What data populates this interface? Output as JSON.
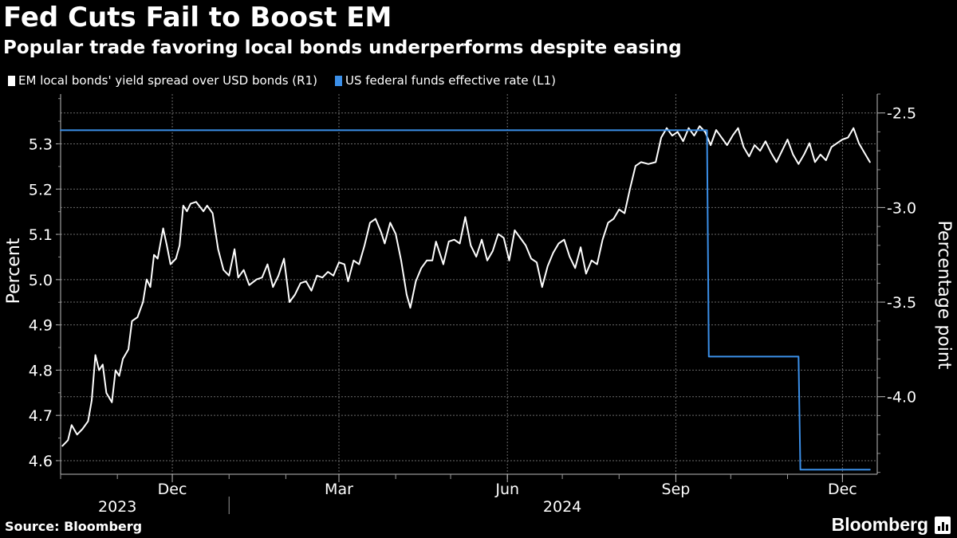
{
  "header": {
    "title": "Fed Cuts Fail to Boost EM",
    "subtitle": "Popular trade favoring local bonds underperforms despite easing"
  },
  "footer": {
    "source": "Source: Bloomberg",
    "brand": "Bloomberg",
    "brand_icon": "bloomberg-chart-icon"
  },
  "chart_data": {
    "type": "line",
    "grid": true,
    "legend_position": "top-left",
    "left_axis": {
      "label": "Percent",
      "range": [
        4.57,
        5.41
      ],
      "ticks": [
        4.6,
        4.7,
        4.8,
        4.9,
        5.0,
        5.1,
        5.2,
        5.3
      ],
      "tick_labels": [
        "4.6",
        "4.7",
        "4.8",
        "4.9",
        "5.0",
        "5.1",
        "5.2",
        "5.3"
      ]
    },
    "right_axis": {
      "label": "Percentage point",
      "range": [
        -4.41,
        -2.4
      ],
      "ticks": [
        -2.5,
        -3.0,
        -3.5,
        -4.0
      ],
      "tick_labels": [
        "-2.5",
        "-3.0",
        "-3.5",
        "-4.0"
      ]
    },
    "x_axis": {
      "range": [
        "2023-10-01",
        "2024-12-20"
      ],
      "month_labels": [
        {
          "date": "2023-12-01",
          "label": "Dec"
        },
        {
          "date": "2024-03-01",
          "label": "Mar"
        },
        {
          "date": "2024-06-01",
          "label": "Jun"
        },
        {
          "date": "2024-09-01",
          "label": "Sep"
        },
        {
          "date": "2024-12-01",
          "label": "Dec"
        }
      ],
      "year_labels": [
        {
          "date": "2023-11-01",
          "label": "2023"
        },
        {
          "date": "2024-07-01",
          "label": "2024"
        }
      ],
      "year_divider": "2024-01-01"
    },
    "series": [
      {
        "name": "EM local bonds' yield spread over USD bonds (R1)",
        "axis": "right",
        "color": "#ffffff",
        "points": [
          [
            "2023-10-02",
            -4.26
          ],
          [
            "2023-10-05",
            -4.23
          ],
          [
            "2023-10-07",
            -4.15
          ],
          [
            "2023-10-10",
            -4.2
          ],
          [
            "2023-10-13",
            -4.17
          ],
          [
            "2023-10-16",
            -4.13
          ],
          [
            "2023-10-18",
            -4.02
          ],
          [
            "2023-10-20",
            -3.78
          ],
          [
            "2023-10-22",
            -3.86
          ],
          [
            "2023-10-24",
            -3.83
          ],
          [
            "2023-10-26",
            -3.98
          ],
          [
            "2023-10-29",
            -4.03
          ],
          [
            "2023-10-31",
            -3.86
          ],
          [
            "2023-11-02",
            -3.89
          ],
          [
            "2023-11-04",
            -3.8
          ],
          [
            "2023-11-07",
            -3.75
          ],
          [
            "2023-11-09",
            -3.6
          ],
          [
            "2023-11-12",
            -3.58
          ],
          [
            "2023-11-15",
            -3.5
          ],
          [
            "2023-11-17",
            -3.38
          ],
          [
            "2023-11-19",
            -3.42
          ],
          [
            "2023-11-21",
            -3.25
          ],
          [
            "2023-11-23",
            -3.27
          ],
          [
            "2023-11-26",
            -3.11
          ],
          [
            "2023-11-28",
            -3.2
          ],
          [
            "2023-11-30",
            -3.3
          ],
          [
            "2023-12-03",
            -3.27
          ],
          [
            "2023-12-05",
            -3.2
          ],
          [
            "2023-12-07",
            -2.99
          ],
          [
            "2023-12-09",
            -3.02
          ],
          [
            "2023-12-11",
            -2.98
          ],
          [
            "2023-12-14",
            -2.97
          ],
          [
            "2023-12-18",
            -3.02
          ],
          [
            "2023-12-20",
            -2.99
          ],
          [
            "2023-12-23",
            -3.03
          ],
          [
            "2023-12-26",
            -3.22
          ],
          [
            "2023-12-29",
            -3.33
          ],
          [
            "2024-01-01",
            -3.36
          ],
          [
            "2024-01-04",
            -3.22
          ],
          [
            "2024-01-06",
            -3.37
          ],
          [
            "2024-01-09",
            -3.33
          ],
          [
            "2024-01-12",
            -3.41
          ],
          [
            "2024-01-16",
            -3.38
          ],
          [
            "2024-01-19",
            -3.37
          ],
          [
            "2024-01-22",
            -3.3
          ],
          [
            "2024-01-25",
            -3.42
          ],
          [
            "2024-01-28",
            -3.36
          ],
          [
            "2024-01-31",
            -3.27
          ],
          [
            "2024-02-03",
            -3.5
          ],
          [
            "2024-02-06",
            -3.46
          ],
          [
            "2024-02-09",
            -3.4
          ],
          [
            "2024-02-12",
            -3.39
          ],
          [
            "2024-02-15",
            -3.44
          ],
          [
            "2024-02-18",
            -3.36
          ],
          [
            "2024-02-21",
            -3.37
          ],
          [
            "2024-02-24",
            -3.34
          ],
          [
            "2024-02-27",
            -3.36
          ],
          [
            "2024-03-01",
            -3.29
          ],
          [
            "2024-03-04",
            -3.3
          ],
          [
            "2024-03-06",
            -3.39
          ],
          [
            "2024-03-09",
            -3.28
          ],
          [
            "2024-03-12",
            -3.3
          ],
          [
            "2024-03-15",
            -3.2
          ],
          [
            "2024-03-18",
            -3.08
          ],
          [
            "2024-03-21",
            -3.06
          ],
          [
            "2024-03-24",
            -3.13
          ],
          [
            "2024-03-26",
            -3.19
          ],
          [
            "2024-03-29",
            -3.08
          ],
          [
            "2024-04-01",
            -3.14
          ],
          [
            "2024-04-04",
            -3.28
          ],
          [
            "2024-04-07",
            -3.46
          ],
          [
            "2024-04-09",
            -3.53
          ],
          [
            "2024-04-12",
            -3.39
          ],
          [
            "2024-04-15",
            -3.32
          ],
          [
            "2024-04-18",
            -3.28
          ],
          [
            "2024-04-21",
            -3.28
          ],
          [
            "2024-04-23",
            -3.18
          ],
          [
            "2024-04-27",
            -3.3
          ],
          [
            "2024-04-30",
            -3.18
          ],
          [
            "2024-05-03",
            -3.17
          ],
          [
            "2024-05-06",
            -3.19
          ],
          [
            "2024-05-09",
            -3.05
          ],
          [
            "2024-05-12",
            -3.2
          ],
          [
            "2024-05-15",
            -3.26
          ],
          [
            "2024-05-18",
            -3.17
          ],
          [
            "2024-05-21",
            -3.28
          ],
          [
            "2024-05-24",
            -3.23
          ],
          [
            "2024-05-27",
            -3.14
          ],
          [
            "2024-05-30",
            -3.16
          ],
          [
            "2024-06-02",
            -3.28
          ],
          [
            "2024-06-05",
            -3.12
          ],
          [
            "2024-06-08",
            -3.16
          ],
          [
            "2024-06-11",
            -3.2
          ],
          [
            "2024-06-14",
            -3.27
          ],
          [
            "2024-06-17",
            -3.29
          ],
          [
            "2024-06-20",
            -3.42
          ],
          [
            "2024-06-23",
            -3.31
          ],
          [
            "2024-06-26",
            -3.24
          ],
          [
            "2024-06-29",
            -3.19
          ],
          [
            "2024-07-02",
            -3.17
          ],
          [
            "2024-07-05",
            -3.26
          ],
          [
            "2024-07-08",
            -3.32
          ],
          [
            "2024-07-11",
            -3.21
          ],
          [
            "2024-07-14",
            -3.35
          ],
          [
            "2024-07-17",
            -3.28
          ],
          [
            "2024-07-20",
            -3.3
          ],
          [
            "2024-07-23",
            -3.17
          ],
          [
            "2024-07-26",
            -3.08
          ],
          [
            "2024-07-29",
            -3.06
          ],
          [
            "2024-08-01",
            -3.01
          ],
          [
            "2024-08-04",
            -3.03
          ],
          [
            "2024-08-07",
            -2.9
          ],
          [
            "2024-08-10",
            -2.78
          ],
          [
            "2024-08-13",
            -2.76
          ],
          [
            "2024-08-17",
            -2.77
          ],
          [
            "2024-08-21",
            -2.76
          ],
          [
            "2024-08-24",
            -2.63
          ],
          [
            "2024-08-27",
            -2.58
          ],
          [
            "2024-08-30",
            -2.62
          ],
          [
            "2024-09-02",
            -2.6
          ],
          [
            "2024-09-05",
            -2.65
          ],
          [
            "2024-09-08",
            -2.58
          ],
          [
            "2024-09-11",
            -2.62
          ],
          [
            "2024-09-14",
            -2.57
          ],
          [
            "2024-09-17",
            -2.6
          ],
          [
            "2024-09-20",
            -2.67
          ],
          [
            "2024-09-23",
            -2.59
          ],
          [
            "2024-09-26",
            -2.63
          ],
          [
            "2024-09-29",
            -2.67
          ],
          [
            "2024-10-02",
            -2.62
          ],
          [
            "2024-10-05",
            -2.58
          ],
          [
            "2024-10-08",
            -2.68
          ],
          [
            "2024-10-11",
            -2.73
          ],
          [
            "2024-10-14",
            -2.67
          ],
          [
            "2024-10-17",
            -2.7
          ],
          [
            "2024-10-20",
            -2.65
          ],
          [
            "2024-10-23",
            -2.71
          ],
          [
            "2024-10-26",
            -2.76
          ],
          [
            "2024-10-29",
            -2.7
          ],
          [
            "2024-11-01",
            -2.64
          ],
          [
            "2024-11-04",
            -2.72
          ],
          [
            "2024-11-07",
            -2.77
          ],
          [
            "2024-11-10",
            -2.72
          ],
          [
            "2024-11-13",
            -2.66
          ],
          [
            "2024-11-16",
            -2.76
          ],
          [
            "2024-11-19",
            -2.72
          ],
          [
            "2024-11-22",
            -2.75
          ],
          [
            "2024-11-25",
            -2.68
          ],
          [
            "2024-11-28",
            -2.66
          ],
          [
            "2024-12-01",
            -2.64
          ],
          [
            "2024-12-04",
            -2.63
          ],
          [
            "2024-12-07",
            -2.58
          ],
          [
            "2024-12-10",
            -2.66
          ],
          [
            "2024-12-13",
            -2.71
          ],
          [
            "2024-12-16",
            -2.76
          ]
        ]
      },
      {
        "name": "US federal funds effective rate (L1)",
        "axis": "left",
        "color": "#3b8fe8",
        "points": [
          [
            "2023-10-01",
            5.33
          ],
          [
            "2024-09-18",
            5.33
          ],
          [
            "2024-09-19",
            4.83
          ],
          [
            "2024-11-07",
            4.83
          ],
          [
            "2024-11-08",
            4.58
          ],
          [
            "2024-12-16",
            4.58
          ]
        ]
      }
    ]
  }
}
